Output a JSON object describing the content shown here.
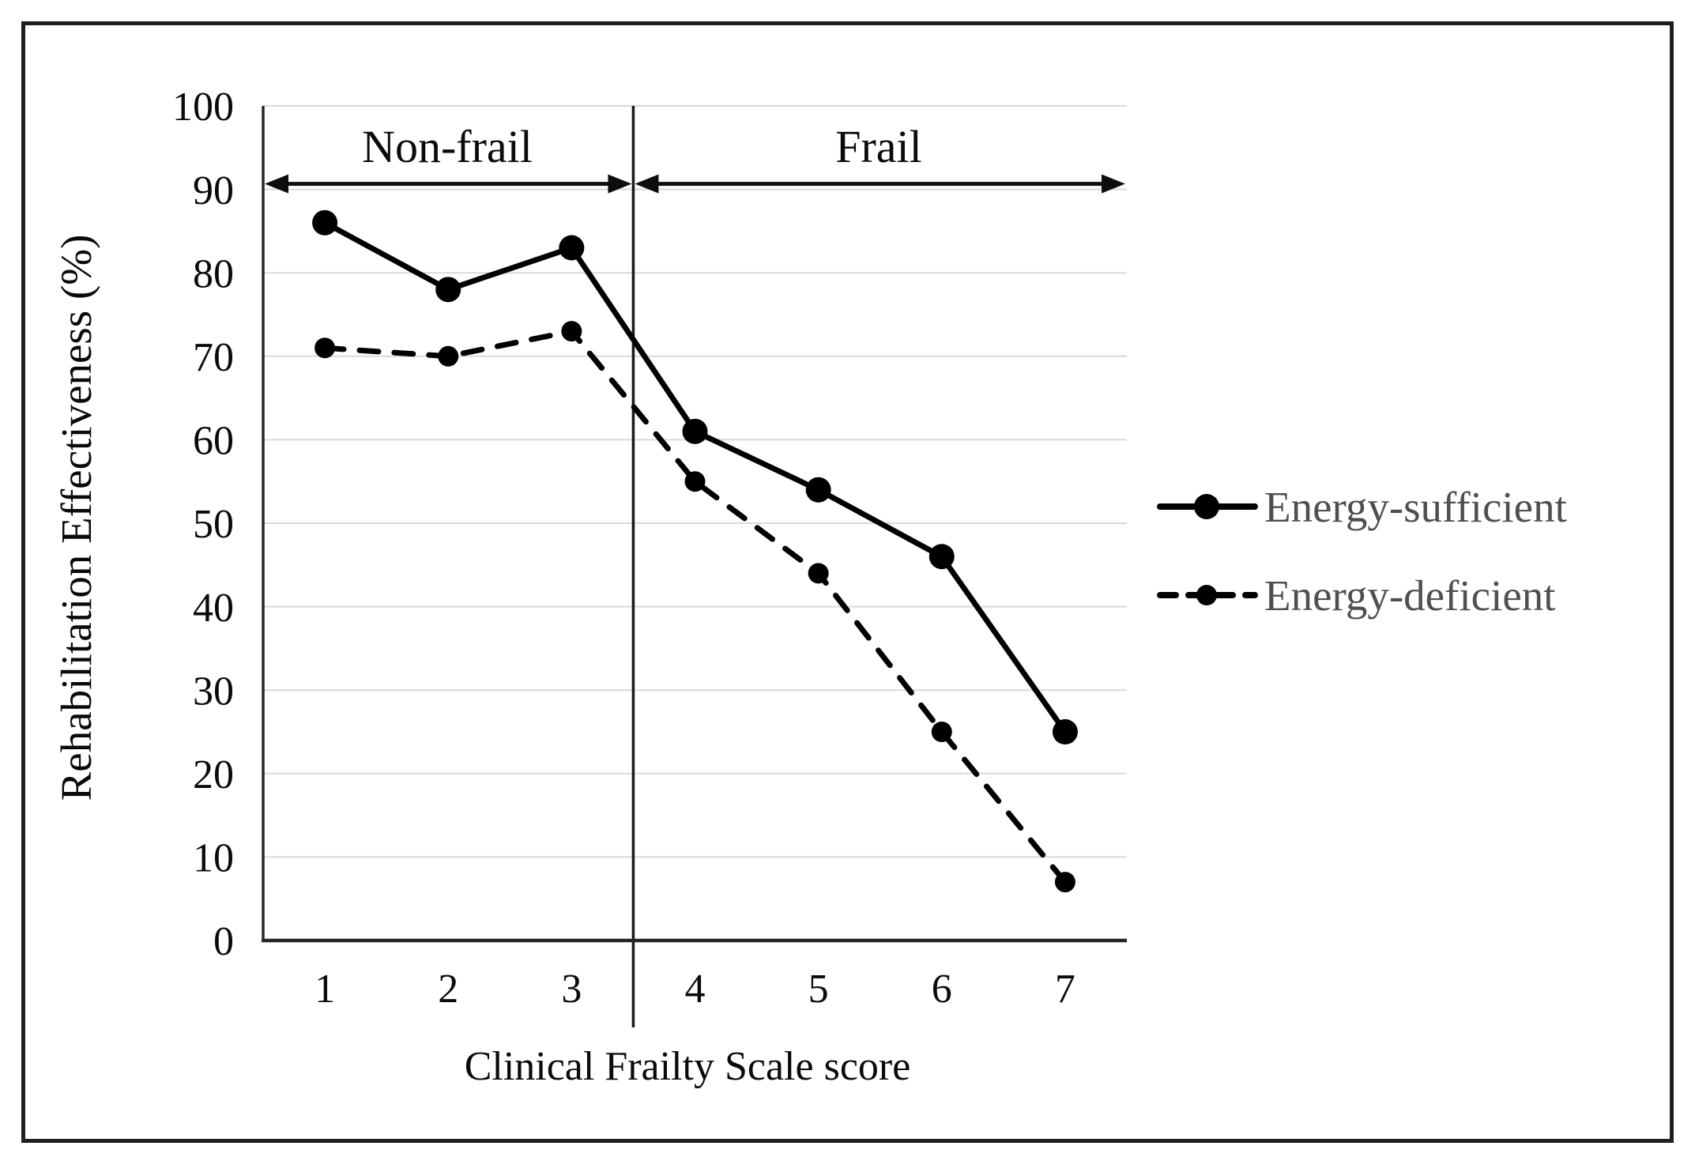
{
  "figure": {
    "type": "scientific line chart figure",
    "background": "#ffffff"
  },
  "chart_data": {
    "type": "line",
    "title": "",
    "xlabel": "Clinical Frailty Scale score",
    "ylabel": "Rehabilitation Effectiveness (%)",
    "x": [
      1,
      2,
      3,
      4,
      5,
      6,
      7
    ],
    "series": [
      {
        "name": "Energy-sufficient",
        "style": "solid",
        "values": [
          86,
          78,
          83,
          61,
          54,
          46,
          25
        ]
      },
      {
        "name": "Energy-deficient",
        "style": "dashed",
        "values": [
          71,
          70,
          73,
          55,
          44,
          25,
          7
        ]
      }
    ],
    "xlim": [
      0.5,
      7.5
    ],
    "ylim": [
      0,
      100
    ],
    "xticks": [
      1,
      2,
      3,
      4,
      5,
      6,
      7
    ],
    "yticks": [
      0,
      10,
      20,
      30,
      40,
      50,
      60,
      70,
      80,
      90,
      100
    ],
    "grid": "horizontal",
    "legend_position": "right",
    "annotations": {
      "divider_x": 3.5,
      "regions": [
        {
          "label": "Non-frail",
          "x_start": 0.5,
          "x_end": 3.5,
          "arrow_y": 90
        },
        {
          "label": "Frail",
          "x_start": 3.5,
          "x_end": 7.5,
          "arrow_y": 90
        }
      ]
    },
    "colors": {
      "series": "#000000",
      "gridline": "#d9d9d9",
      "axis": "#262626",
      "divider": "#1a1a1a",
      "arrow": "#0d0d0d",
      "text": "#0a0a0a",
      "legend_text": "#4f4f4f",
      "frame_border": "#1f1f1f",
      "background": "#ffffff"
    }
  }
}
